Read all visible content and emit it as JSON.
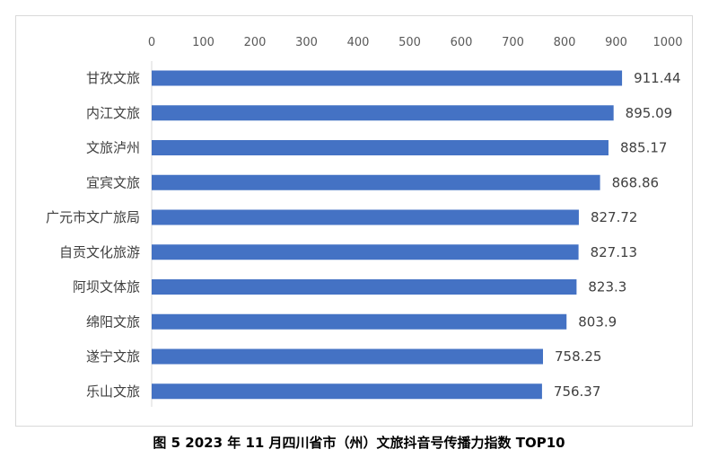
{
  "caption": "图 5   2023 年 11 月四川省市（州）文旅抖音号传播力指数 TOP10",
  "chart_data": {
    "type": "bar",
    "orientation": "horizontal",
    "axis_position": "top",
    "xlim": [
      0,
      1000
    ],
    "ticks": [
      0,
      100,
      200,
      300,
      400,
      500,
      600,
      700,
      800,
      900,
      1000
    ],
    "grid": false,
    "bar_color": "#4472C4",
    "categories": [
      "甘孜文旅",
      "内江文旅",
      "文旅泸州",
      "宜宾文旅",
      "广元市文广旅局",
      "自贡文化旅游",
      "阿坝文体旅",
      "绵阳文旅",
      "遂宁文旅",
      "乐山文旅"
    ],
    "values": [
      911.44,
      895.09,
      885.17,
      868.86,
      827.72,
      827.13,
      823.3,
      803.9,
      758.25,
      756.37
    ],
    "value_labels": [
      "911.44",
      "895.09",
      "885.17",
      "868.86",
      "827.72",
      "827.13",
      "823.3",
      "803.9",
      "758.25",
      "756.37"
    ]
  }
}
